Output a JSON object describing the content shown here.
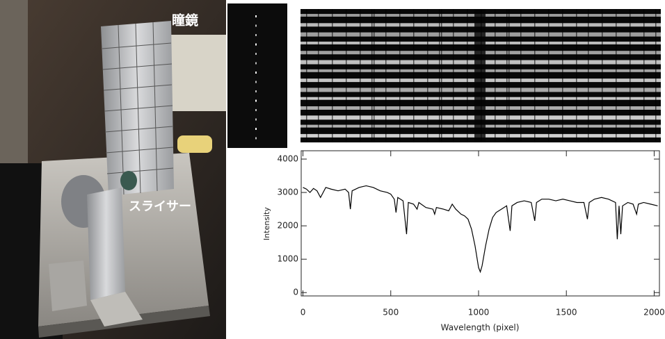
{
  "photo_labels": [
    "瞳鏡",
    "スライサー"
  ],
  "chart_data": {
    "type": "line",
    "x_label": "Wavelength (pixel)",
    "y_label": "Intensity",
    "x": [
      0,
      20,
      40,
      60,
      80,
      100,
      130,
      160,
      200,
      240,
      260,
      270,
      280,
      320,
      360,
      400,
      440,
      480,
      500,
      520,
      530,
      540,
      570,
      590,
      600,
      630,
      650,
      660,
      700,
      740,
      750,
      760,
      800,
      830,
      850,
      870,
      900,
      920,
      940,
      960,
      980,
      1000,
      1010,
      1020,
      1040,
      1060,
      1080,
      1100,
      1130,
      1160,
      1180,
      1190,
      1220,
      1260,
      1300,
      1320,
      1330,
      1360,
      1400,
      1440,
      1480,
      1520,
      1560,
      1600,
      1620,
      1630,
      1660,
      1700,
      1740,
      1780,
      1790,
      1800,
      1810,
      1820,
      1850,
      1880,
      1900,
      1910,
      1940,
      1980,
      2020
    ],
    "values": [
      3150,
      3100,
      3000,
      3120,
      3050,
      2850,
      3150,
      3100,
      3050,
      3100,
      3000,
      2500,
      3050,
      3150,
      3200,
      3150,
      3050,
      3000,
      2950,
      2800,
      2400,
      2850,
      2750,
      1750,
      2700,
      2650,
      2500,
      2700,
      2550,
      2500,
      2350,
      2550,
      2500,
      2450,
      2650,
      2500,
      2350,
      2300,
      2200,
      1900,
      1400,
      750,
      620,
      800,
      1400,
      1900,
      2250,
      2400,
      2500,
      2600,
      1850,
      2600,
      2700,
      2750,
      2700,
      2150,
      2700,
      2800,
      2800,
      2750,
      2800,
      2750,
      2700,
      2700,
      2200,
      2700,
      2800,
      2850,
      2800,
      2700,
      1600,
      2600,
      1750,
      2600,
      2700,
      2650,
      2350,
      2650,
      2700,
      2650,
      2600
    ],
    "color": "#000000",
    "xlim": [
      -10,
      2030
    ],
    "ylim": [
      -100,
      4250
    ],
    "xticks": [
      0,
      500,
      1000,
      1500,
      2000
    ],
    "yticks": [
      0,
      1000,
      2000,
      3000,
      4000
    ]
  }
}
